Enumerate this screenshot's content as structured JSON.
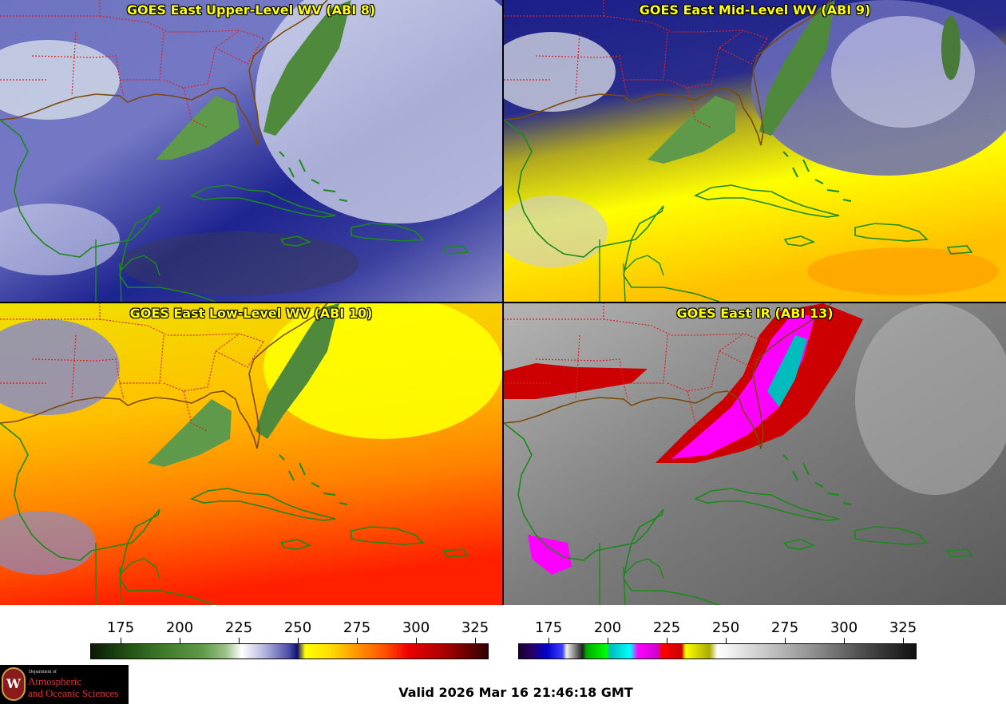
{
  "panels": [
    {
      "title": "GOES East Upper-Level WV (ABI 8)"
    },
    {
      "title": "GOES East Mid-Level WV (ABI 9)"
    },
    {
      "title": "GOES East Low-Level WV (ABI 10)"
    },
    {
      "title": "GOES East IR (ABI 13)"
    }
  ],
  "colorbars": [
    {
      "ticks": [
        "175",
        "200",
        "225",
        "250",
        "275",
        "300",
        "325"
      ]
    },
    {
      "ticks": [
        "175",
        "200",
        "225",
        "250",
        "275",
        "300",
        "325"
      ]
    }
  ],
  "valid_text": "Valid 2026 Mar 16 21:46:18 GMT",
  "logo": {
    "dept": "Department of",
    "line1": "Atmospheric",
    "line2": "and Oceanic Sciences",
    "seal_letter": "W"
  },
  "colors": {
    "title": "#ffff00",
    "state_border": "#dd2222",
    "coast": "#1a8a1a",
    "us_coast": "#8a5a10"
  }
}
